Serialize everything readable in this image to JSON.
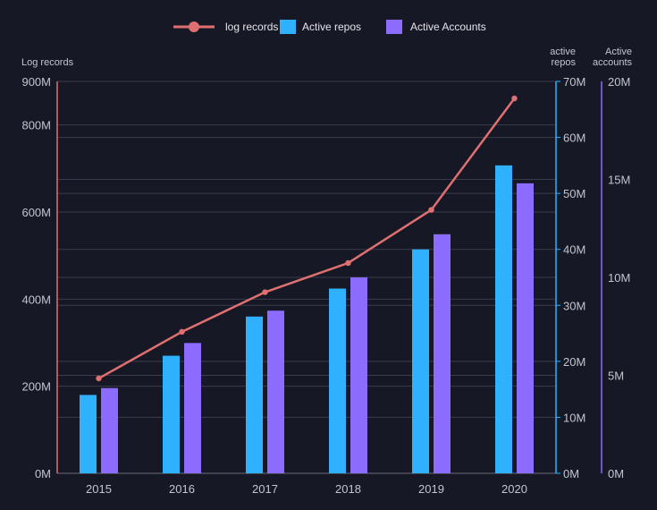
{
  "chart_data": {
    "type": "bar",
    "categories": [
      "2015",
      "2016",
      "2017",
      "2018",
      "2019",
      "2020"
    ],
    "series": [
      {
        "name": "log records",
        "kind": "line",
        "axis": "left",
        "color": "#e07070",
        "values": [
          218000000,
          325000000,
          416000000,
          483000000,
          605000000,
          861000000
        ]
      },
      {
        "name": "Active repos",
        "kind": "bar",
        "axis": "right1",
        "color": "#2fb1ff",
        "values": [
          14000000,
          21000000,
          28000000,
          33000000,
          40000000,
          55000000
        ]
      },
      {
        "name": "Active Accounts",
        "kind": "bar",
        "axis": "right2",
        "color": "#8c6cff",
        "values": [
          4350000,
          6650000,
          8300000,
          10000000,
          12200000,
          14800000
        ]
      }
    ],
    "axes": {
      "left": {
        "label": "Log records",
        "min": 0,
        "max": 900000000,
        "ticks": [
          0,
          200000000,
          400000000,
          600000000,
          800000000,
          900000000
        ],
        "tick_labels": [
          "0M",
          "200M",
          "400M",
          "600M",
          "800M",
          "900M"
        ],
        "color": "#e07070"
      },
      "right1": {
        "label_lines": [
          "active",
          "repos"
        ],
        "min": 0,
        "max": 70000000,
        "ticks": [
          0,
          10000000,
          20000000,
          30000000,
          40000000,
          50000000,
          60000000,
          70000000
        ],
        "tick_labels": [
          "0M",
          "10M",
          "20M",
          "30M",
          "40M",
          "50M",
          "60M",
          "70M"
        ],
        "color": "#2fb1ff"
      },
      "right2": {
        "label_lines": [
          "Active",
          "accounts"
        ],
        "min": 0,
        "max": 20000000,
        "ticks": [
          0,
          5000000,
          10000000,
          15000000,
          20000000
        ],
        "tick_labels": [
          "0M",
          "5M",
          "10M",
          "15M",
          "20M"
        ],
        "color": "#8c6cff"
      }
    },
    "legend_position": "top-center",
    "grid": true
  }
}
